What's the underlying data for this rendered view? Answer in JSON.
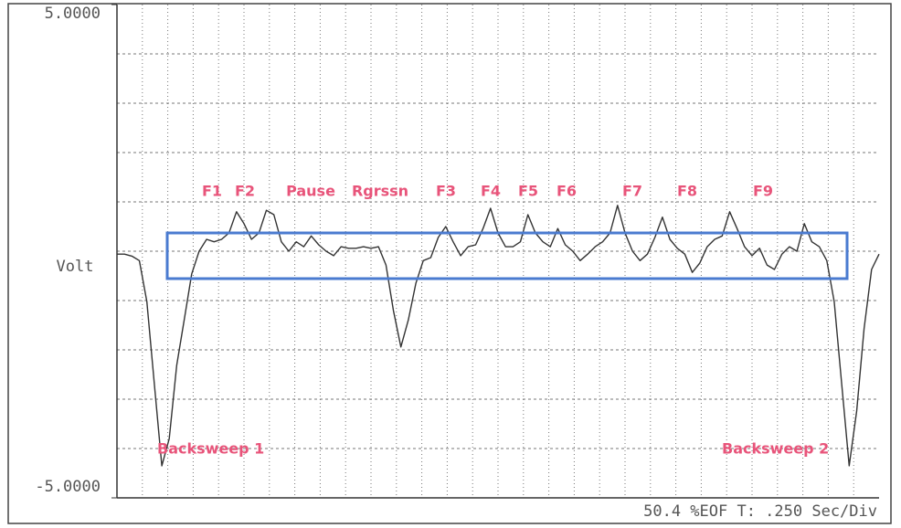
{
  "chart_data": {
    "type": "line",
    "ylabel": "Volt",
    "footer": "50.4 %EOF T: .250 Sec/Div",
    "ylim": [
      -5,
      5
    ],
    "yticks": [
      {
        "value": 5,
        "label": "5.0000"
      },
      {
        "value": -5,
        "label": "-5.0000"
      }
    ],
    "grid": true,
    "color": "#333333",
    "values": [
      -0.06,
      -0.06,
      -0.1,
      -0.19,
      -1.02,
      -2.69,
      -4.35,
      -3.8,
      -2.31,
      -1.39,
      -0.46,
      0,
      0.24,
      0.19,
      0.24,
      0.37,
      0.8,
      0.56,
      0.24,
      0.37,
      0.83,
      0.74,
      0.19,
      0,
      0.19,
      0.09,
      0.31,
      0.13,
      0,
      -0.09,
      0.09,
      0.06,
      0.06,
      0.09,
      0.06,
      0.09,
      -0.28,
      -1.2,
      -1.94,
      -1.39,
      -0.65,
      -0.19,
      -0.13,
      0.28,
      0.5,
      0.19,
      -0.09,
      0.09,
      0.13,
      0.46,
      0.87,
      0.37,
      0.09,
      0.09,
      0.19,
      0.74,
      0.37,
      0.19,
      0.09,
      0.46,
      0.13,
      0,
      -0.19,
      -0.06,
      0.09,
      0.19,
      0.37,
      0.93,
      0.37,
      0,
      -0.19,
      -0.06,
      0.28,
      0.69,
      0.24,
      0.06,
      -0.06,
      -0.43,
      -0.24,
      0.09,
      0.24,
      0.31,
      0.8,
      0.46,
      0.09,
      -0.09,
      0.06,
      -0.28,
      -0.37,
      -0.06,
      0.09,
      0,
      0.56,
      0.19,
      0.09,
      -0.19,
      -1.02,
      -2.69,
      -4.35,
      -3.24,
      -1.57,
      -0.37,
      -0.06
    ],
    "annotations": [
      "F1",
      "F2",
      "Pause",
      "Rgrssn",
      "F3",
      "F4",
      "F5",
      "F6",
      "F7",
      "F8",
      "F9",
      "Backsweep 1",
      "Backsweep 2"
    ]
  }
}
